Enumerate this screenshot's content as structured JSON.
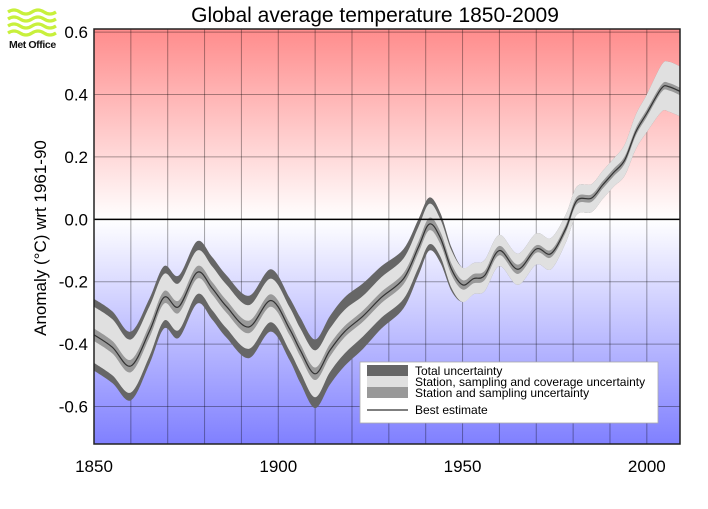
{
  "logo": {
    "text": "Met Office",
    "color": "#c8f03c"
  },
  "colors": {
    "warm": "#ff8c8c",
    "cool": "#8080ff",
    "total_uncertainty": "#666666",
    "coverage_uncertainty": "#e0e0e0",
    "sampling_uncertainty": "#999999",
    "best_estimate": "#333333"
  },
  "chart_data": {
    "type": "area",
    "title": "Global average temperature 1850-2009",
    "xlabel": "",
    "ylabel": "Anomaly (°C) wrt 1961-90",
    "xlim": [
      1850,
      2009
    ],
    "ylim": [
      -0.72,
      0.61
    ],
    "grid": true,
    "x_ticks": [
      "1850",
      "1900",
      "1950",
      "2000"
    ],
    "y_ticks": [
      "0.6",
      "0.4",
      "0.2",
      "0.0",
      "-0.2",
      "-0.4",
      "-0.6"
    ],
    "legend_position": "bottom-right",
    "legend": [
      "Total uncertainty",
      "Station, sampling and coverage uncertainty",
      "Station and sampling uncertainty",
      "Best estimate"
    ],
    "x": [
      1850,
      1855,
      1860,
      1865,
      1869,
      1873,
      1878,
      1882,
      1886,
      1892,
      1898,
      1903,
      1906,
      1910,
      1914,
      1918,
      1923,
      1928,
      1934,
      1938,
      1941,
      1944,
      1947,
      1950,
      1953,
      1956,
      1960,
      1965,
      1970,
      1974,
      1978,
      1981,
      1985,
      1988,
      1991,
      1994,
      1997,
      2000,
      2004,
      2006,
      2009
    ],
    "best_estimate": [
      -0.37,
      -0.41,
      -0.47,
      -0.36,
      -0.25,
      -0.28,
      -0.17,
      -0.22,
      -0.28,
      -0.345,
      -0.26,
      -0.35,
      -0.42,
      -0.495,
      -0.42,
      -0.36,
      -0.31,
      -0.25,
      -0.19,
      -0.09,
      -0.015,
      -0.06,
      -0.16,
      -0.21,
      -0.19,
      -0.18,
      -0.1,
      -0.16,
      -0.095,
      -0.11,
      -0.03,
      0.06,
      0.068,
      0.11,
      0.15,
      0.19,
      0.28,
      0.34,
      0.42,
      0.425,
      0.41
    ],
    "total_uncertainty": [
      0.115,
      0.115,
      0.11,
      0.105,
      0.1,
      0.1,
      0.1,
      0.1,
      0.1,
      0.1,
      0.1,
      0.1,
      0.105,
      0.11,
      0.11,
      0.11,
      0.105,
      0.1,
      0.095,
      0.09,
      0.085,
      0.08,
      0.07,
      0.055,
      0.05,
      0.05,
      0.05,
      0.05,
      0.05,
      0.05,
      0.045,
      0.045,
      0.045,
      0.045,
      0.045,
      0.05,
      0.055,
      0.06,
      0.075,
      0.08,
      0.08
    ],
    "coverage_uncertainty": [
      0.09,
      0.09,
      0.085,
      0.08,
      0.075,
      0.075,
      0.07,
      0.07,
      0.07,
      0.07,
      0.07,
      0.07,
      0.07,
      0.075,
      0.07,
      0.07,
      0.065,
      0.065,
      0.065,
      0.065,
      0.065,
      0.06,
      0.06,
      0.055,
      0.05,
      0.05,
      0.05,
      0.05,
      0.05,
      0.05,
      0.045,
      0.045,
      0.045,
      0.045,
      0.045,
      0.05,
      0.055,
      0.06,
      0.075,
      0.08,
      0.08
    ],
    "sampling_uncertainty": [
      0.02,
      0.02,
      0.02,
      0.02,
      0.02,
      0.02,
      0.02,
      0.02,
      0.02,
      0.02,
      0.02,
      0.02,
      0.02,
      0.02,
      0.02,
      0.018,
      0.018,
      0.018,
      0.018,
      0.018,
      0.02,
      0.02,
      0.018,
      0.015,
      0.015,
      0.015,
      0.015,
      0.015,
      0.012,
      0.012,
      0.012,
      0.012,
      0.012,
      0.012,
      0.012,
      0.012,
      0.012,
      0.012,
      0.012,
      0.012,
      0.012
    ]
  }
}
